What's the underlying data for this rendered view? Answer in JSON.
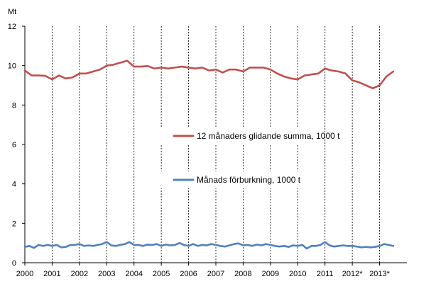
{
  "chart_data": {
    "type": "line",
    "ylabel": "Mt",
    "ylim": [
      0,
      12
    ],
    "yticks": [
      "0",
      "2",
      "4",
      "6",
      "8",
      "10",
      "12"
    ],
    "xlim": [
      2000,
      2014
    ],
    "xticks": [
      "2000",
      "2001",
      "2002",
      "2003",
      "2004",
      "2005",
      "2006",
      "2007",
      "2008",
      "2009",
      "2010",
      "2011",
      "2012*",
      "2013*"
    ],
    "grid": "vertical dashed at each year",
    "legend_position": "center-right",
    "series": [
      {
        "name": "12 månaders glidande summa, 1000 t",
        "color": "#c0504d",
        "points": [
          [
            2000.0,
            9.75
          ],
          [
            2000.25,
            9.5
          ],
          [
            2000.5,
            9.5
          ],
          [
            2000.75,
            9.48
          ],
          [
            2001.0,
            9.3
          ],
          [
            2001.25,
            9.5
          ],
          [
            2001.5,
            9.35
          ],
          [
            2001.75,
            9.4
          ],
          [
            2002.0,
            9.6
          ],
          [
            2002.25,
            9.6
          ],
          [
            2002.5,
            9.7
          ],
          [
            2002.75,
            9.8
          ],
          [
            2003.0,
            10.0
          ],
          [
            2003.25,
            10.05
          ],
          [
            2003.5,
            10.15
          ],
          [
            2003.75,
            10.25
          ],
          [
            2004.0,
            9.95
          ],
          [
            2004.25,
            9.95
          ],
          [
            2004.5,
            9.98
          ],
          [
            2004.75,
            9.85
          ],
          [
            2005.0,
            9.9
          ],
          [
            2005.25,
            9.85
          ],
          [
            2005.5,
            9.9
          ],
          [
            2005.75,
            9.95
          ],
          [
            2006.0,
            9.9
          ],
          [
            2006.25,
            9.85
          ],
          [
            2006.5,
            9.9
          ],
          [
            2006.75,
            9.75
          ],
          [
            2007.0,
            9.8
          ],
          [
            2007.25,
            9.65
          ],
          [
            2007.5,
            9.8
          ],
          [
            2007.75,
            9.8
          ],
          [
            2008.0,
            9.7
          ],
          [
            2008.25,
            9.9
          ],
          [
            2008.5,
            9.9
          ],
          [
            2008.75,
            9.9
          ],
          [
            2009.0,
            9.8
          ],
          [
            2009.25,
            9.6
          ],
          [
            2009.5,
            9.45
          ],
          [
            2009.75,
            9.35
          ],
          [
            2010.0,
            9.3
          ],
          [
            2010.25,
            9.5
          ],
          [
            2010.5,
            9.55
          ],
          [
            2010.75,
            9.6
          ],
          [
            2011.0,
            9.85
          ],
          [
            2011.25,
            9.75
          ],
          [
            2011.5,
            9.7
          ],
          [
            2011.75,
            9.6
          ],
          [
            2012.0,
            9.25
          ],
          [
            2012.25,
            9.15
          ],
          [
            2012.5,
            9.0
          ],
          [
            2012.75,
            8.85
          ],
          [
            2013.0,
            9.0
          ],
          [
            2013.25,
            9.45
          ],
          [
            2013.5,
            9.7
          ]
        ]
      },
      {
        "name": "Månads förburkning, 1000 t",
        "color": "#4f81bd",
        "points": [
          [
            2000.0,
            0.8
          ],
          [
            2000.17,
            0.85
          ],
          [
            2000.33,
            0.75
          ],
          [
            2000.5,
            0.9
          ],
          [
            2000.67,
            0.85
          ],
          [
            2000.83,
            0.9
          ],
          [
            2001.0,
            0.85
          ],
          [
            2001.17,
            0.9
          ],
          [
            2001.33,
            0.78
          ],
          [
            2001.5,
            0.8
          ],
          [
            2001.67,
            0.9
          ],
          [
            2001.83,
            0.9
          ],
          [
            2002.0,
            0.95
          ],
          [
            2002.17,
            0.85
          ],
          [
            2002.33,
            0.88
          ],
          [
            2002.5,
            0.85
          ],
          [
            2002.67,
            0.9
          ],
          [
            2002.83,
            0.95
          ],
          [
            2003.0,
            1.05
          ],
          [
            2003.17,
            0.88
          ],
          [
            2003.33,
            0.85
          ],
          [
            2003.5,
            0.9
          ],
          [
            2003.67,
            0.95
          ],
          [
            2003.83,
            1.05
          ],
          [
            2004.0,
            0.9
          ],
          [
            2004.17,
            0.9
          ],
          [
            2004.33,
            0.85
          ],
          [
            2004.5,
            0.92
          ],
          [
            2004.67,
            0.9
          ],
          [
            2004.83,
            0.95
          ],
          [
            2005.0,
            0.85
          ],
          [
            2005.17,
            0.92
          ],
          [
            2005.33,
            0.88
          ],
          [
            2005.5,
            0.9
          ],
          [
            2005.67,
            1.0
          ],
          [
            2005.83,
            0.9
          ],
          [
            2006.0,
            0.85
          ],
          [
            2006.17,
            0.95
          ],
          [
            2006.33,
            0.85
          ],
          [
            2006.5,
            0.9
          ],
          [
            2006.67,
            0.88
          ],
          [
            2006.83,
            0.95
          ],
          [
            2007.0,
            0.9
          ],
          [
            2007.17,
            0.85
          ],
          [
            2007.33,
            0.82
          ],
          [
            2007.5,
            0.88
          ],
          [
            2007.67,
            0.95
          ],
          [
            2007.83,
            0.98
          ],
          [
            2008.0,
            0.88
          ],
          [
            2008.17,
            0.9
          ],
          [
            2008.33,
            0.85
          ],
          [
            2008.5,
            0.92
          ],
          [
            2008.67,
            0.88
          ],
          [
            2008.83,
            0.95
          ],
          [
            2009.0,
            0.9
          ],
          [
            2009.17,
            0.85
          ],
          [
            2009.33,
            0.82
          ],
          [
            2009.5,
            0.85
          ],
          [
            2009.67,
            0.8
          ],
          [
            2009.83,
            0.88
          ],
          [
            2010.0,
            0.85
          ],
          [
            2010.17,
            0.9
          ],
          [
            2010.33,
            0.72
          ],
          [
            2010.5,
            0.85
          ],
          [
            2010.67,
            0.85
          ],
          [
            2010.83,
            0.9
          ],
          [
            2011.0,
            1.05
          ],
          [
            2011.17,
            0.88
          ],
          [
            2011.33,
            0.82
          ],
          [
            2011.5,
            0.85
          ],
          [
            2011.67,
            0.88
          ],
          [
            2011.83,
            0.85
          ],
          [
            2012.0,
            0.85
          ],
          [
            2012.17,
            0.82
          ],
          [
            2012.33,
            0.78
          ],
          [
            2012.5,
            0.8
          ],
          [
            2012.67,
            0.78
          ],
          [
            2012.83,
            0.8
          ],
          [
            2013.0,
            0.85
          ],
          [
            2013.17,
            0.95
          ],
          [
            2013.33,
            0.9
          ],
          [
            2013.5,
            0.85
          ]
        ]
      }
    ]
  }
}
